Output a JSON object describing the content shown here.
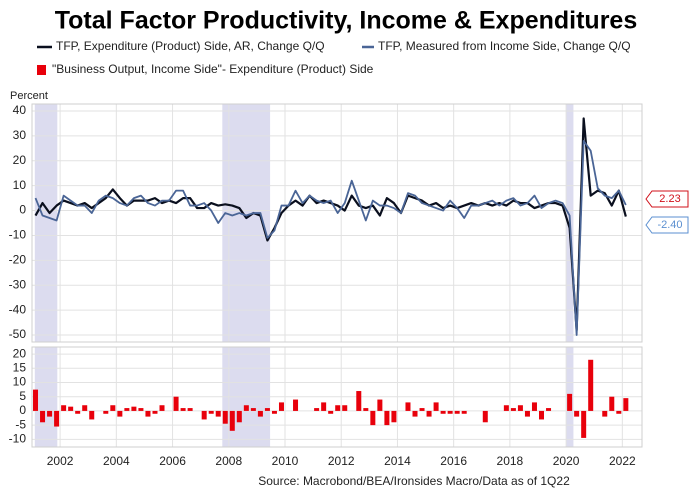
{
  "chart_data": [
    {
      "type": "line",
      "title": "Total Factor Productivity, Income & Expenditures",
      "ylabel": "Percent",
      "xlim": [
        2001.0,
        2022.7
      ],
      "xticks": [
        2002,
        2004,
        2006,
        2008,
        2010,
        2012,
        2014,
        2016,
        2018,
        2020,
        2022
      ],
      "ylim": [
        -52.8,
        42.8
      ],
      "yticks": [
        40,
        30,
        20,
        10,
        0,
        -10,
        -20,
        -30,
        -40,
        -50
      ],
      "grid": true,
      "recessions": [
        [
          2001.1,
          2001.9
        ],
        [
          2007.77,
          2009.47
        ],
        [
          2020.0,
          2020.26
        ]
      ],
      "x": [
        2001.125,
        2001.375,
        2001.625,
        2001.875,
        2002.125,
        2002.375,
        2002.625,
        2002.875,
        2003.125,
        2003.375,
        2003.625,
        2003.875,
        2004.125,
        2004.375,
        2004.625,
        2004.875,
        2005.125,
        2005.375,
        2005.625,
        2005.875,
        2006.125,
        2006.375,
        2006.625,
        2006.875,
        2007.125,
        2007.375,
        2007.625,
        2007.875,
        2008.125,
        2008.375,
        2008.625,
        2008.875,
        2009.125,
        2009.375,
        2009.625,
        2009.875,
        2010.125,
        2010.375,
        2010.625,
        2010.875,
        2011.125,
        2011.375,
        2011.625,
        2011.875,
        2012.125,
        2012.375,
        2012.625,
        2012.875,
        2013.125,
        2013.375,
        2013.625,
        2013.875,
        2014.125,
        2014.375,
        2014.625,
        2014.875,
        2015.125,
        2015.375,
        2015.625,
        2015.875,
        2016.125,
        2016.375,
        2016.625,
        2016.875,
        2017.125,
        2017.375,
        2017.625,
        2017.875,
        2018.125,
        2018.375,
        2018.625,
        2018.875,
        2019.125,
        2019.375,
        2019.625,
        2019.875,
        2020.125,
        2020.375,
        2020.625,
        2020.875,
        2021.125,
        2021.375,
        2021.625,
        2021.875,
        2022.125
      ],
      "series": [
        {
          "name": "TFP, Expenditure (Product) Side, AR, Change Q/Q",
          "color": "#0a0f1e",
          "values": [
            -2,
            3,
            -1,
            2,
            4,
            3,
            2,
            3,
            1,
            3,
            5,
            8.5,
            5,
            2,
            4,
            4,
            4,
            5,
            3,
            4,
            3,
            5,
            5,
            1,
            1,
            3,
            2,
            2.5,
            2,
            1,
            -3,
            -1,
            -2,
            -12,
            -7,
            -1,
            2,
            4,
            2,
            6,
            3,
            4,
            3,
            2,
            0,
            6,
            2,
            1,
            2,
            -2,
            5,
            3,
            -1,
            6,
            5,
            4,
            2,
            3,
            1,
            2,
            1,
            2,
            3,
            2,
            3,
            2,
            3,
            2,
            4,
            3,
            3,
            1,
            2,
            3,
            3,
            2,
            -7,
            -48,
            37,
            6,
            8,
            7,
            2,
            8,
            -2.4
          ]
        },
        {
          "name": "TFP, Measured from Income Side, Change Q/Q",
          "color": "#4a6596",
          "values": [
            5,
            -2,
            -3,
            -4,
            6,
            4,
            2,
            2,
            -1,
            4,
            6,
            5,
            3,
            2,
            5,
            6,
            3,
            2,
            4,
            4,
            8,
            8,
            2,
            2,
            3,
            0,
            -5,
            -1,
            -2,
            -1,
            -2,
            -1,
            -1,
            -11,
            -8,
            2,
            2,
            8,
            3,
            6,
            4,
            3,
            4,
            -1,
            3,
            12,
            4,
            -4,
            4,
            2,
            2,
            1,
            -1,
            7,
            6,
            3,
            2,
            1,
            0,
            4,
            1,
            -3,
            2,
            2,
            3,
            4,
            2,
            4,
            5,
            2,
            3,
            6,
            1,
            3,
            4,
            3,
            -2,
            -50,
            28,
            24,
            9,
            6,
            5,
            8,
            2.23
          ]
        }
      ],
      "annotations": [
        {
          "text": "2.23",
          "color": "#d0101a"
        },
        {
          "text": "-2.40",
          "color": "#5b8fd0"
        }
      ]
    },
    {
      "type": "bar",
      "xlim": [
        2001.0,
        2022.7
      ],
      "xticks": [
        2002,
        2004,
        2006,
        2008,
        2010,
        2012,
        2014,
        2016,
        2018,
        2020,
        2022
      ],
      "ylim": [
        -12.7,
        22.5
      ],
      "yticks": [
        20,
        15,
        10,
        5,
        0,
        -5,
        -10
      ],
      "grid": true,
      "x": [
        2001.125,
        2001.375,
        2001.625,
        2001.875,
        2002.125,
        2002.375,
        2002.625,
        2002.875,
        2003.125,
        2003.375,
        2003.625,
        2003.875,
        2004.125,
        2004.375,
        2004.625,
        2004.875,
        2005.125,
        2005.375,
        2005.625,
        2005.875,
        2006.125,
        2006.375,
        2006.625,
        2006.875,
        2007.125,
        2007.375,
        2007.625,
        2007.875,
        2008.125,
        2008.375,
        2008.625,
        2008.875,
        2009.125,
        2009.375,
        2009.625,
        2009.875,
        2010.125,
        2010.375,
        2010.625,
        2010.875,
        2011.125,
        2011.375,
        2011.625,
        2011.875,
        2012.125,
        2012.375,
        2012.625,
        2012.875,
        2013.125,
        2013.375,
        2013.625,
        2013.875,
        2014.125,
        2014.375,
        2014.625,
        2014.875,
        2015.125,
        2015.375,
        2015.625,
        2015.875,
        2016.125,
        2016.375,
        2016.625,
        2016.875,
        2017.125,
        2017.375,
        2017.625,
        2017.875,
        2018.125,
        2018.375,
        2018.625,
        2018.875,
        2019.125,
        2019.375,
        2019.625,
        2019.875,
        2020.125,
        2020.375,
        2020.625,
        2020.875,
        2021.125,
        2021.375,
        2021.625,
        2021.875,
        2022.125
      ],
      "series": [
        {
          "name": "\"Business Output, Income Side\"- Expenditure (Product) Side",
          "color": "#e8000b",
          "values": [
            7.5,
            -4,
            -2,
            -5.5,
            2,
            1.5,
            -1,
            2,
            -3,
            0,
            -1,
            2,
            -2,
            1,
            1.5,
            1,
            -2,
            -1,
            2,
            0,
            5,
            1,
            1,
            0,
            -3,
            -1,
            -2,
            -4.5,
            -7,
            -4,
            2,
            1,
            -2,
            1,
            -1,
            3,
            0,
            4,
            0,
            0,
            1,
            3,
            -1,
            2,
            2,
            0,
            7,
            1,
            -5,
            4,
            -5,
            -4,
            0,
            3,
            -2,
            1,
            -2,
            3,
            -1,
            -1,
            -1,
            -1,
            0,
            0,
            -4,
            0,
            0,
            2,
            1,
            2,
            -2,
            3,
            -3,
            1,
            0,
            0,
            6,
            -2,
            -9.5,
            18,
            0,
            -2,
            5,
            -1,
            4.5
          ]
        }
      ],
      "source": "Source: Macrobond/BEA/Ironsides Macro/Data as of 1Q22"
    }
  ]
}
